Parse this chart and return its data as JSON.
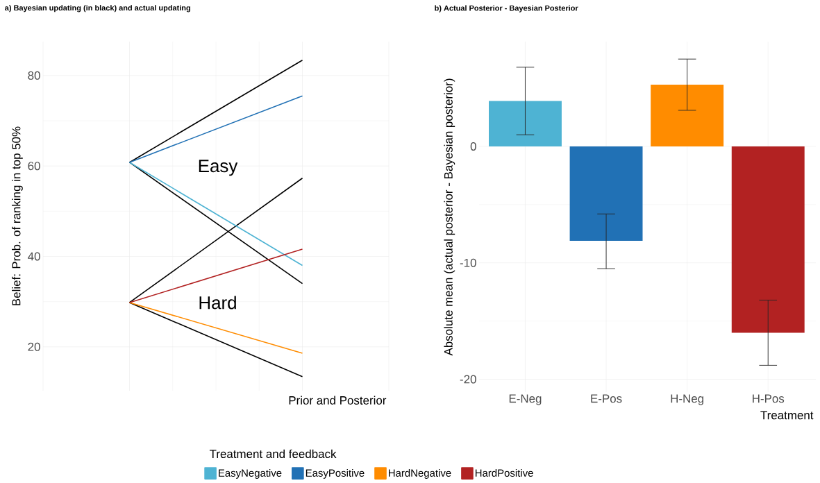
{
  "chart_data": [
    {
      "type": "line",
      "title": "**a) Bayesian updating (in black) and actual updating**",
      "ylabel": "Belief: Prob. of ranking in top 50%",
      "xlabel": "Prior and Posterior",
      "categories": [
        null,
        null
      ],
      "ylim": [
        10.3,
        87.5
      ],
      "yticks": [
        20,
        40,
        60,
        80
      ],
      "grid": true,
      "tick_labels": "y",
      "legend": "bottom",
      "legend_title": "Treatment and feedback",
      "annotations": [
        "Easy",
        "Hard"
      ],
      "series": [
        {
          "color": "#000000",
          "values": [
            60.8,
            83.4
          ]
        },
        {
          "color": "#000000",
          "values": [
            60.8,
            34.0
          ]
        },
        {
          "color": "#000000",
          "values": [
            29.8,
            57.3
          ]
        },
        {
          "color": "#000000",
          "values": [
            29.8,
            13.4
          ]
        },
        {
          "name": "EasyNegative",
          "color": "#4eb3d3",
          "values": [
            60.8,
            38.0
          ]
        },
        {
          "name": "EasyPositive",
          "color": "#2171b5",
          "values": [
            60.8,
            75.5
          ]
        },
        {
          "name": "HardNegative",
          "color": "#ff8c00",
          "values": [
            29.8,
            18.6
          ]
        },
        {
          "name": "HardPositive",
          "color": "#b22222",
          "values": [
            29.8,
            41.6
          ]
        }
      ]
    },
    {
      "type": "bar",
      "title": "**b) Actual Posterior - Bayesian Posterior**",
      "ylabel": "Absolute mean (actual posterior - Bayesian posterior)",
      "xlabel": "Treatment",
      "categories": [
        "E-Neg",
        "E-Pos",
        "H-Neg",
        "H-Pos"
      ],
      "ylim": [
        -21.1,
        9.0
      ],
      "yticks": [
        -20,
        -10,
        0
      ],
      "grid": true,
      "values": [
        3.9,
        -8.1,
        5.3,
        -16.0
      ],
      "colors": [
        "#4eb3d3",
        "#2171b5",
        "#ff8c00",
        "#b22222"
      ],
      "errors": [
        [
          1.0,
          6.8
        ],
        [
          -10.5,
          -5.8
        ],
        [
          3.1,
          7.5
        ],
        [
          -18.8,
          -13.2
        ]
      ]
    }
  ]
}
